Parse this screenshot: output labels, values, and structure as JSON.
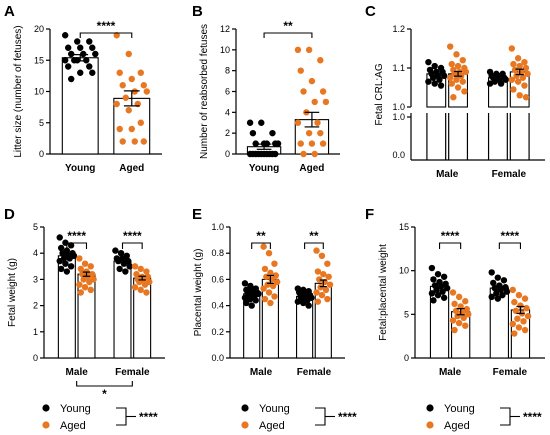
{
  "colors": {
    "young": "#000000",
    "aged": "#e87722"
  },
  "legend": {
    "young": "Young",
    "aged": "Aged",
    "significance": "****"
  },
  "chart_data": [
    {
      "panel": "A",
      "type": "bar",
      "ylabel": "Litter size (number of fetuses)",
      "ylim": [
        0,
        20
      ],
      "yticks": [
        0,
        5,
        10,
        15,
        20
      ],
      "categories": [
        "Young",
        "Aged"
      ],
      "series": [
        {
          "group": "Young",
          "mean": 15.4,
          "sem": 0.5,
          "points": [
            19,
            18,
            18,
            17,
            17,
            17,
            16,
            16,
            16,
            15,
            15,
            15,
            15,
            14,
            14,
            13,
            13,
            12
          ]
        },
        {
          "group": "Aged",
          "mean": 8.9,
          "sem": 1.2,
          "points": [
            19,
            16,
            13,
            13,
            12,
            11,
            11,
            10,
            10,
            9,
            8,
            8,
            7,
            5,
            4,
            4,
            2,
            2,
            2
          ]
        }
      ],
      "significance": [
        {
          "label": "****"
        }
      ]
    },
    {
      "panel": "B",
      "type": "bar",
      "ylabel": "Number of reabsorbed fetuses",
      "ylim": [
        0,
        12
      ],
      "yticks": [
        0,
        2,
        4,
        6,
        8,
        10,
        12
      ],
      "categories": [
        "Young",
        "Aged"
      ],
      "series": [
        {
          "group": "Young",
          "mean": 0.7,
          "sem": 0.25,
          "points": [
            3,
            3,
            2,
            2,
            1,
            1,
            1,
            1,
            1,
            0,
            0,
            0,
            0,
            0,
            0,
            0,
            0,
            0,
            0
          ]
        },
        {
          "group": "Aged",
          "mean": 3.3,
          "sem": 0.7,
          "points": [
            10,
            10,
            9,
            8,
            7,
            6,
            6,
            5,
            5,
            4,
            3,
            3,
            2,
            2,
            1,
            1,
            1,
            0,
            0
          ]
        }
      ],
      "significance": [
        {
          "label": "**"
        }
      ]
    },
    {
      "panel": "C",
      "type": "bar",
      "ylabel": "Fetal CRL:AG",
      "ylim": [
        1.0,
        1.2
      ],
      "yticks": [
        1.0,
        1.1,
        1.2
      ],
      "broken_axis": true,
      "categories": [
        "Male",
        "Female"
      ],
      "series": [
        {
          "group": "Young",
          "values": [
            1.085,
            1.075
          ],
          "sem": [
            0.005,
            0.004
          ],
          "points": [
            [
              1.115,
              1.105,
              1.1,
              1.095,
              1.09,
              1.09,
              1.085,
              1.08,
              1.08,
              1.075,
              1.07,
              1.065,
              1.06,
              1.055
            ],
            [
              1.09,
              1.085,
              1.085,
              1.08,
              1.08,
              1.075,
              1.075,
              1.07,
              1.07,
              1.065,
              1.06,
              1.06
            ]
          ]
        },
        {
          "group": "Aged",
          "values": [
            1.085,
            1.09
          ],
          "sem": [
            0.006,
            0.007
          ],
          "points": [
            [
              1.155,
              1.135,
              1.12,
              1.11,
              1.105,
              1.1,
              1.095,
              1.09,
              1.09,
              1.085,
              1.08,
              1.075,
              1.07,
              1.065,
              1.06,
              1.05,
              1.04,
              1.025
            ],
            [
              1.15,
              1.125,
              1.115,
              1.11,
              1.105,
              1.1,
              1.095,
              1.09,
              1.085,
              1.08,
              1.075,
              1.07,
              1.065,
              1.055,
              1.045,
              1.03,
              1.025
            ]
          ]
        }
      ],
      "significance": []
    },
    {
      "panel": "D",
      "type": "bar",
      "ylabel": "Fetal weight (g)",
      "ylim": [
        0,
        5
      ],
      "yticks": [
        0,
        1,
        2,
        3,
        4,
        5
      ],
      "categories": [
        "Male",
        "Female"
      ],
      "series": [
        {
          "group": "Young",
          "values": [
            3.9,
            3.7
          ],
          "sem": [
            0.08,
            0.07
          ],
          "points": [
            [
              4.6,
              4.4,
              4.3,
              4.2,
              4.1,
              4.0,
              4.0,
              3.9,
              3.9,
              3.8,
              3.8,
              3.7,
              3.6,
              3.5,
              3.4,
              3.3
            ],
            [
              4.1,
              4.0,
              3.9,
              3.8,
              3.8,
              3.7,
              3.7,
              3.6,
              3.5,
              3.4,
              3.3
            ]
          ]
        },
        {
          "group": "Aged",
          "values": [
            3.2,
            3.05
          ],
          "sem": [
            0.08,
            0.07
          ],
          "points": [
            [
              3.8,
              3.6,
              3.5,
              3.4,
              3.3,
              3.2,
              3.2,
              3.1,
              3.0,
              3.0,
              2.9,
              2.8,
              2.7,
              2.6,
              2.5
            ],
            [
              3.5,
              3.4,
              3.3,
              3.2,
              3.1,
              3.1,
              3.0,
              3.0,
              2.9,
              2.9,
              2.8,
              2.7,
              2.6,
              2.5
            ]
          ]
        }
      ],
      "significance": [
        {
          "label": "****"
        },
        {
          "label": "****"
        },
        {
          "label": "*"
        }
      ]
    },
    {
      "panel": "E",
      "type": "bar",
      "ylabel": "Placental weight (g)",
      "ylim": [
        0,
        1.0
      ],
      "yticks": [
        0.0,
        0.2,
        0.4,
        0.6,
        0.8,
        1.0
      ],
      "categories": [
        "Male",
        "Female"
      ],
      "series": [
        {
          "group": "Young",
          "values": [
            0.49,
            0.47
          ],
          "sem": [
            0.01,
            0.01
          ],
          "points": [
            [
              0.57,
              0.55,
              0.53,
              0.52,
              0.51,
              0.5,
              0.5,
              0.49,
              0.49,
              0.48,
              0.47,
              0.46,
              0.45,
              0.44,
              0.42,
              0.4
            ],
            [
              0.53,
              0.52,
              0.51,
              0.5,
              0.49,
              0.48,
              0.47,
              0.47,
              0.46,
              0.45,
              0.44,
              0.43,
              0.42,
              0.4
            ]
          ]
        },
        {
          "group": "Aged",
          "values": [
            0.6,
            0.57
          ],
          "sem": [
            0.03,
            0.025
          ],
          "points": [
            [
              0.85,
              0.8,
              0.72,
              0.68,
              0.65,
              0.63,
              0.62,
              0.6,
              0.58,
              0.56,
              0.55,
              0.53,
              0.5,
              0.47,
              0.45,
              0.42
            ],
            [
              0.82,
              0.78,
              0.72,
              0.66,
              0.64,
              0.62,
              0.6,
              0.58,
              0.56,
              0.54,
              0.52,
              0.5,
              0.48,
              0.45,
              0.43
            ]
          ]
        }
      ],
      "significance": [
        {
          "label": "**"
        },
        {
          "label": "**"
        }
      ]
    },
    {
      "panel": "F",
      "type": "bar",
      "ylabel": "Fetal:placental weight",
      "ylim": [
        0,
        15
      ],
      "yticks": [
        0,
        5,
        10,
        15
      ],
      "categories": [
        "Male",
        "Female"
      ],
      "series": [
        {
          "group": "Young",
          "values": [
            8.2,
            8.0
          ],
          "sem": [
            0.25,
            0.2
          ],
          "points": [
            [
              10.3,
              9.6,
              9.3,
              9.0,
              8.7,
              8.5,
              8.3,
              8.2,
              8.0,
              7.8,
              7.6,
              7.4,
              7.2,
              6.9,
              6.6
            ],
            [
              9.8,
              9.2,
              8.9,
              8.6,
              8.3,
              8.1,
              8.0,
              7.8,
              7.6,
              7.4,
              7.2,
              7.0,
              6.8
            ]
          ]
        },
        {
          "group": "Aged",
          "values": [
            5.3,
            5.5
          ],
          "sem": [
            0.35,
            0.4
          ],
          "points": [
            [
              7.5,
              7.0,
              6.5,
              6.2,
              5.9,
              5.6,
              5.4,
              5.2,
              5.0,
              4.8,
              4.6,
              4.3,
              4.0,
              3.7,
              3.2
            ],
            [
              7.8,
              7.2,
              6.8,
              6.4,
              6.0,
              5.7,
              5.4,
              5.1,
              4.8,
              4.5,
              4.2,
              3.9,
              3.5,
              3.2,
              2.8
            ]
          ]
        }
      ],
      "significance": [
        {
          "label": "****"
        },
        {
          "label": "****"
        }
      ]
    }
  ]
}
